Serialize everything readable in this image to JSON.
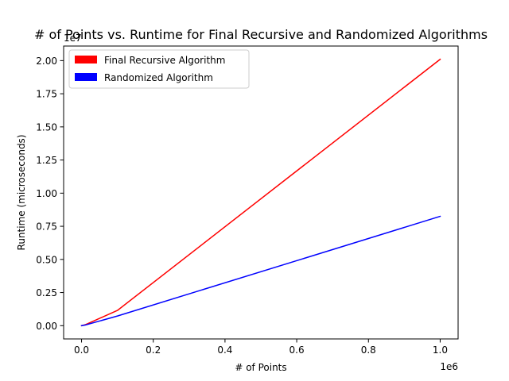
{
  "chart_data": {
    "type": "line",
    "title": "# of Points vs. Runtime for Final Recursive and Randomized Algorithms",
    "xlabel": "# of Points",
    "ylabel": "Runtime (microseconds)",
    "x_offset_label": "1e6",
    "y_offset_label": "1e7",
    "xlim": [
      -50000,
      1050000
    ],
    "ylim": [
      -1000000,
      21100000
    ],
    "xticks": [
      0,
      200000,
      400000,
      600000,
      800000,
      1000000
    ],
    "xtick_labels": [
      "0.0",
      "0.2",
      "0.4",
      "0.6",
      "0.8",
      "1.0"
    ],
    "yticks": [
      0,
      2500000,
      5000000,
      7500000,
      10000000,
      12500000,
      15000000,
      17500000,
      20000000
    ],
    "ytick_labels": [
      "0.00",
      "0.25",
      "0.50",
      "0.75",
      "1.00",
      "1.25",
      "1.50",
      "1.75",
      "2.00"
    ],
    "grid": false,
    "legend_position": "top-left",
    "series": [
      {
        "name": "Final Recursive Algorithm",
        "color": "#ff0000",
        "x": [
          0,
          10000,
          100000,
          1000000
        ],
        "y": [
          0,
          70000,
          1150000,
          20100000
        ]
      },
      {
        "name": "Randomized Algorithm",
        "color": "#0000ff",
        "x": [
          0,
          10000,
          100000,
          1000000
        ],
        "y": [
          0,
          45000,
          730000,
          8250000
        ]
      }
    ]
  }
}
